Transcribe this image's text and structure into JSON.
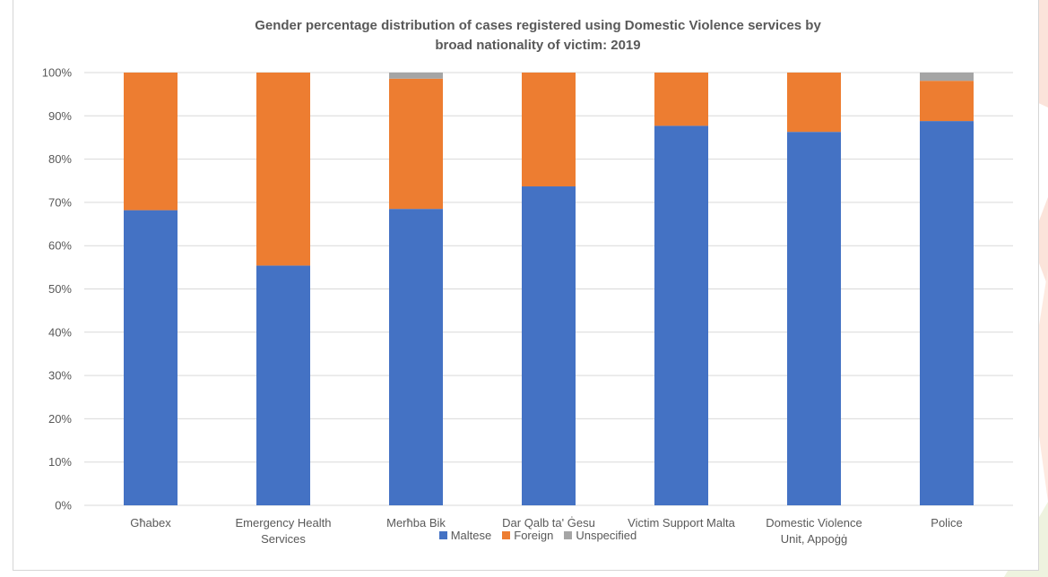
{
  "chart_data": {
    "type": "bar",
    "stacked": true,
    "title_line1": "Gender percentage distribution of cases registered using Domestic Violence services by",
    "title_line2": "broad nationality of victim: 2019",
    "categories": [
      [
        "Għabex"
      ],
      [
        "Emergency Health",
        "Services"
      ],
      [
        "Merħba Bik"
      ],
      [
        "Dar Qalb ta' Ġesu"
      ],
      [
        "Victim Support Malta"
      ],
      [
        "Domestic Violence",
        "Unit, Appoġġ"
      ],
      [
        "Police"
      ]
    ],
    "series": [
      {
        "name": "Maltese",
        "color": "#4472c4",
        "values": [
          68.2,
          55.4,
          68.5,
          73.7,
          87.7,
          86.3,
          88.8
        ]
      },
      {
        "name": "Foreign",
        "color": "#ed7d31",
        "values": [
          31.8,
          44.6,
          30.1,
          26.3,
          12.3,
          13.7,
          9.3
        ]
      },
      {
        "name": "Unspecified",
        "color": "#a5a5a5",
        "values": [
          0,
          0,
          1.4,
          0,
          0,
          0,
          1.9
        ]
      }
    ],
    "y_ticks": [
      "0%",
      "10%",
      "20%",
      "30%",
      "40%",
      "50%",
      "60%",
      "70%",
      "80%",
      "90%",
      "100%"
    ],
    "ylim": [
      0,
      100
    ],
    "grid": true,
    "legend_position": "bottom"
  }
}
